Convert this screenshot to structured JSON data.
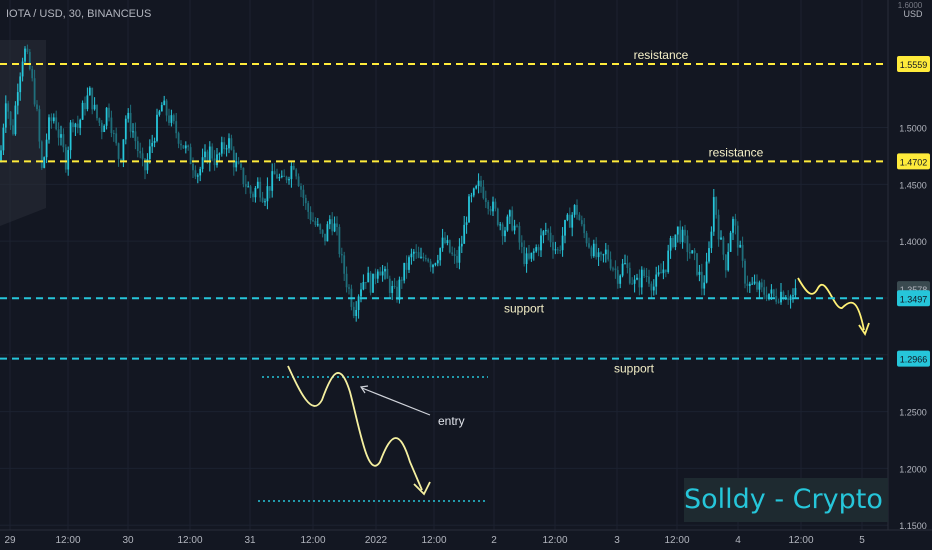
{
  "header": {
    "symbol_line": "IOTA / USD, 30, BINANCEUS"
  },
  "currency_label": "USD",
  "watermark": "Solldy - Crypto for U",
  "colors": {
    "background": "#131722",
    "up": "#26c6da",
    "down": "#1f6f7c",
    "resistance": "#ffeb3b",
    "support": "#26c6da",
    "drawing": "#f5f0a0",
    "text": "#b2b5be"
  },
  "chart_data": {
    "type": "candlestick",
    "symbol": "IOTA / USD",
    "interval": "30",
    "exchange": "BINANCEUS",
    "y_axis": {
      "min": 1.14,
      "max": 1.61,
      "ticks": [
        1.15,
        1.2,
        1.25,
        1.3,
        1.35,
        1.4,
        1.45,
        1.5
      ]
    },
    "x_axis": {
      "ticks": [
        "29",
        "12:00",
        "30",
        "12:00",
        "31",
        "12:00",
        "2022",
        "12:00",
        "2",
        "12:00",
        "3",
        "12:00",
        "4",
        "12:00",
        "5"
      ]
    },
    "price_badges": [
      "1.5559",
      "1.4702",
      "1.3578",
      "1.3497",
      "1.2966"
    ],
    "top_label": "1.6000",
    "annotations": {
      "resistance_lines": [
        {
          "price": 1.5559,
          "label": "resistance"
        },
        {
          "price": 1.4702,
          "label": "resistance"
        }
      ],
      "support_lines": [
        {
          "price": 1.3497,
          "label": "support"
        },
        {
          "price": 1.2966,
          "label": "support"
        }
      ],
      "entry_label": "entry"
    },
    "price_path": [
      [
        0,
        1.47
      ],
      [
        6,
        1.53
      ],
      [
        12,
        1.49
      ],
      [
        18,
        1.54
      ],
      [
        24,
        1.57
      ],
      [
        30,
        1.55
      ],
      [
        36,
        1.52
      ],
      [
        42,
        1.46
      ],
      [
        48,
        1.5
      ],
      [
        54,
        1.51
      ],
      [
        60,
        1.49
      ],
      [
        66,
        1.47
      ],
      [
        72,
        1.51
      ],
      [
        78,
        1.5
      ],
      [
        84,
        1.52
      ],
      [
        90,
        1.53
      ],
      [
        96,
        1.51
      ],
      [
        102,
        1.5
      ],
      [
        108,
        1.52
      ],
      [
        114,
        1.49
      ],
      [
        120,
        1.47
      ],
      [
        126,
        1.51
      ],
      [
        132,
        1.5
      ],
      [
        138,
        1.48
      ],
      [
        144,
        1.46
      ],
      [
        150,
        1.48
      ],
      [
        156,
        1.5
      ],
      [
        162,
        1.52
      ],
      [
        168,
        1.51
      ],
      [
        174,
        1.5
      ],
      [
        180,
        1.49
      ],
      [
        186,
        1.48
      ],
      [
        192,
        1.47
      ],
      [
        198,
        1.46
      ],
      [
        204,
        1.47
      ],
      [
        210,
        1.48
      ],
      [
        216,
        1.47
      ],
      [
        222,
        1.48
      ],
      [
        228,
        1.49
      ],
      [
        234,
        1.47
      ],
      [
        240,
        1.46
      ],
      [
        246,
        1.45
      ],
      [
        252,
        1.44
      ],
      [
        258,
        1.45
      ],
      [
        264,
        1.44
      ],
      [
        270,
        1.45
      ],
      [
        276,
        1.46
      ],
      [
        282,
        1.45
      ],
      [
        288,
        1.46
      ],
      [
        294,
        1.47
      ],
      [
        300,
        1.45
      ],
      [
        306,
        1.43
      ],
      [
        312,
        1.42
      ],
      [
        318,
        1.41
      ],
      [
        324,
        1.4
      ],
      [
        330,
        1.42
      ],
      [
        336,
        1.41
      ],
      [
        342,
        1.38
      ],
      [
        348,
        1.36
      ],
      [
        354,
        1.34
      ],
      [
        360,
        1.36
      ],
      [
        366,
        1.37
      ],
      [
        372,
        1.36
      ],
      [
        378,
        1.38
      ],
      [
        384,
        1.37
      ],
      [
        390,
        1.36
      ],
      [
        396,
        1.35
      ],
      [
        402,
        1.37
      ],
      [
        408,
        1.38
      ],
      [
        414,
        1.39
      ],
      [
        420,
        1.38
      ],
      [
        426,
        1.39
      ],
      [
        432,
        1.38
      ],
      [
        438,
        1.39
      ],
      [
        444,
        1.4
      ],
      [
        450,
        1.39
      ],
      [
        456,
        1.38
      ],
      [
        462,
        1.4
      ],
      [
        468,
        1.43
      ],
      [
        474,
        1.44
      ],
      [
        480,
        1.45
      ],
      [
        486,
        1.44
      ],
      [
        492,
        1.43
      ],
      [
        498,
        1.42
      ],
      [
        504,
        1.41
      ],
      [
        510,
        1.42
      ],
      [
        516,
        1.41
      ],
      [
        522,
        1.39
      ],
      [
        528,
        1.38
      ],
      [
        534,
        1.39
      ],
      [
        540,
        1.4
      ],
      [
        546,
        1.41
      ],
      [
        552,
        1.4
      ],
      [
        558,
        1.39
      ],
      [
        564,
        1.41
      ],
      [
        570,
        1.42
      ],
      [
        576,
        1.43
      ],
      [
        582,
        1.41
      ],
      [
        588,
        1.4
      ],
      [
        594,
        1.39
      ],
      [
        600,
        1.38
      ],
      [
        606,
        1.39
      ],
      [
        612,
        1.38
      ],
      [
        618,
        1.37
      ],
      [
        624,
        1.38
      ],
      [
        630,
        1.37
      ],
      [
        636,
        1.36
      ],
      [
        642,
        1.37
      ],
      [
        648,
        1.37
      ],
      [
        654,
        1.36
      ],
      [
        660,
        1.37
      ],
      [
        666,
        1.38
      ],
      [
        672,
        1.4
      ],
      [
        678,
        1.41
      ],
      [
        684,
        1.4
      ],
      [
        690,
        1.39
      ],
      [
        696,
        1.38
      ],
      [
        702,
        1.36
      ],
      [
        708,
        1.38
      ],
      [
        714,
        1.44
      ],
      [
        720,
        1.4
      ],
      [
        726,
        1.38
      ],
      [
        732,
        1.42
      ],
      [
        738,
        1.4
      ],
      [
        744,
        1.37
      ],
      [
        750,
        1.36
      ],
      [
        756,
        1.36
      ],
      [
        762,
        1.355
      ],
      [
        768,
        1.355
      ],
      [
        774,
        1.35
      ],
      [
        780,
        1.355
      ],
      [
        786,
        1.355
      ],
      [
        792,
        1.35
      ],
      [
        797,
        1.355
      ]
    ]
  }
}
